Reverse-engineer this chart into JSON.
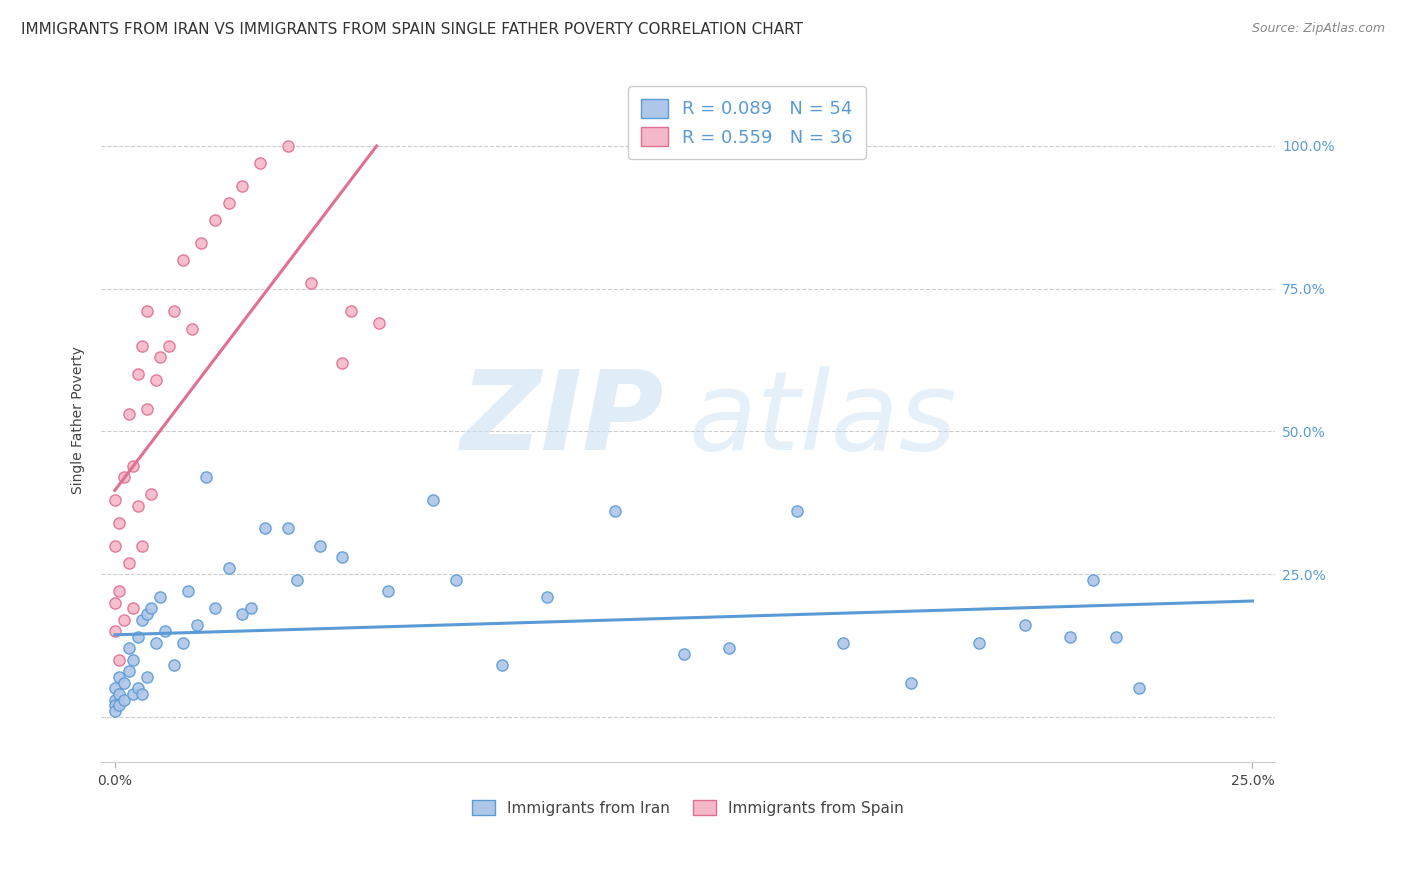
{
  "title": "IMMIGRANTS FROM IRAN VS IMMIGRANTS FROM SPAIN SINGLE FATHER POVERTY CORRELATION CHART",
  "source": "Source: ZipAtlas.com",
  "ylabel": "Single Father Poverty",
  "xlim": [
    -0.003,
    0.255
  ],
  "ylim": [
    -0.08,
    1.12
  ],
  "x_tick_positions": [
    0.0,
    0.25
  ],
  "x_tick_labels": [
    "0.0%",
    "25.0%"
  ],
  "y_tick_positions": [
    0.0,
    0.25,
    0.5,
    0.75,
    1.0
  ],
  "y_tick_labels": [
    "",
    "25.0%",
    "50.0%",
    "75.0%",
    "100.0%"
  ],
  "y_right_tick_labels": [
    "",
    "25.0%",
    "50.0%",
    "75.0%",
    "100.0%"
  ],
  "grid_color": "#cccccc",
  "background_color": "#ffffff",
  "iran_fill_color": "#aec6e8",
  "iran_edge_color": "#5b9bd5",
  "spain_fill_color": "#f4b8c8",
  "spain_edge_color": "#e07090",
  "iran_R": 0.089,
  "iran_N": 54,
  "spain_R": 0.559,
  "spain_N": 36,
  "legend_label_iran": "Immigrants from Iran",
  "legend_label_spain": "Immigrants from Spain",
  "watermark_zip": "ZIP",
  "watermark_atlas": "atlas",
  "title_fontsize": 11,
  "label_fontsize": 10,
  "tick_fontsize": 10,
  "marker_size": 65,
  "iran_x": [
    0.0,
    0.0,
    0.0,
    0.0,
    0.001,
    0.001,
    0.001,
    0.002,
    0.002,
    0.003,
    0.003,
    0.004,
    0.004,
    0.005,
    0.005,
    0.006,
    0.006,
    0.007,
    0.007,
    0.008,
    0.009,
    0.01,
    0.011,
    0.013,
    0.015,
    0.016,
    0.018,
    0.02,
    0.022,
    0.025,
    0.028,
    0.03,
    0.033,
    0.038,
    0.04,
    0.045,
    0.05,
    0.06,
    0.07,
    0.075,
    0.085,
    0.095,
    0.11,
    0.125,
    0.135,
    0.15,
    0.16,
    0.175,
    0.19,
    0.2,
    0.21,
    0.215,
    0.22,
    0.225
  ],
  "iran_y": [
    0.05,
    0.03,
    0.02,
    0.01,
    0.07,
    0.04,
    0.02,
    0.03,
    0.06,
    0.08,
    0.12,
    0.04,
    0.1,
    0.14,
    0.05,
    0.17,
    0.04,
    0.18,
    0.07,
    0.19,
    0.13,
    0.21,
    0.15,
    0.09,
    0.13,
    0.22,
    0.16,
    0.42,
    0.19,
    0.26,
    0.18,
    0.19,
    0.33,
    0.33,
    0.24,
    0.3,
    0.28,
    0.22,
    0.38,
    0.24,
    0.09,
    0.21,
    0.36,
    0.11,
    0.12,
    0.36,
    0.13,
    0.06,
    0.13,
    0.16,
    0.14,
    0.24,
    0.14,
    0.05
  ],
  "spain_x": [
    0.0,
    0.0,
    0.0,
    0.0,
    0.001,
    0.001,
    0.001,
    0.002,
    0.002,
    0.003,
    0.003,
    0.004,
    0.004,
    0.005,
    0.005,
    0.006,
    0.006,
    0.007,
    0.007,
    0.008,
    0.009,
    0.01,
    0.012,
    0.013,
    0.015,
    0.017,
    0.019,
    0.022,
    0.025,
    0.028,
    0.032,
    0.038,
    0.043,
    0.05,
    0.052,
    0.058
  ],
  "spain_y": [
    0.15,
    0.2,
    0.3,
    0.38,
    0.1,
    0.22,
    0.34,
    0.17,
    0.42,
    0.27,
    0.53,
    0.19,
    0.44,
    0.37,
    0.6,
    0.3,
    0.65,
    0.54,
    0.71,
    0.39,
    0.59,
    0.63,
    0.65,
    0.71,
    0.8,
    0.68,
    0.83,
    0.87,
    0.9,
    0.93,
    0.97,
    1.0,
    0.76,
    0.62,
    0.71,
    0.69
  ]
}
